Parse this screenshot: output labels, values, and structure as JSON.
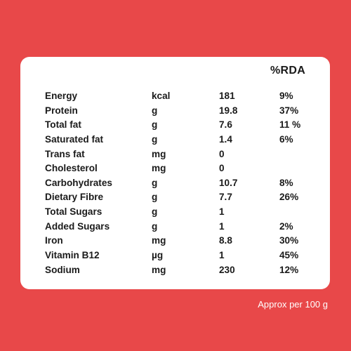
{
  "header": {
    "rda_label": "%RDA"
  },
  "nutrients": [
    {
      "name": "Energy",
      "unit": "kcal",
      "value": "181",
      "rda": "9%"
    },
    {
      "name": "Protein",
      "unit": "g",
      "value": "19.8",
      "rda": "37%"
    },
    {
      "name": "Total fat",
      "unit": "g",
      "value": "7.6",
      "rda": "11 %"
    },
    {
      "name": "Saturated fat",
      "unit": "g",
      "value": "1.4",
      "rda": "6%"
    },
    {
      "name": "Trans fat",
      "unit": "mg",
      "value": "0",
      "rda": ""
    },
    {
      "name": "Cholesterol",
      "unit": "mg",
      "value": "0",
      "rda": ""
    },
    {
      "name": "Carbohydrates",
      "unit": "g",
      "value": "10.7",
      "rda": "8%"
    },
    {
      "name": "Dietary Fibre",
      "unit": "g",
      "value": "7.7",
      "rda": "26%"
    },
    {
      "name": "Total Sugars",
      "unit": "g",
      "value": "1",
      "rda": ""
    },
    {
      "name": "Added Sugars",
      "unit": "g",
      "value": "1",
      "rda": "2%"
    },
    {
      "name": "Iron",
      "unit": "mg",
      "value": "8.8",
      "rda": "30%"
    },
    {
      "name": "Vitamin B12",
      "unit": "µg",
      "value": "1",
      "rda": "45%"
    },
    {
      "name": "Sodium",
      "unit": "mg",
      "value": "230",
      "rda": "12%"
    }
  ],
  "footnote": "Approx per 100 g",
  "colors": {
    "background": "#e84849",
    "card": "#ffffff",
    "text": "#1a1a1a"
  }
}
